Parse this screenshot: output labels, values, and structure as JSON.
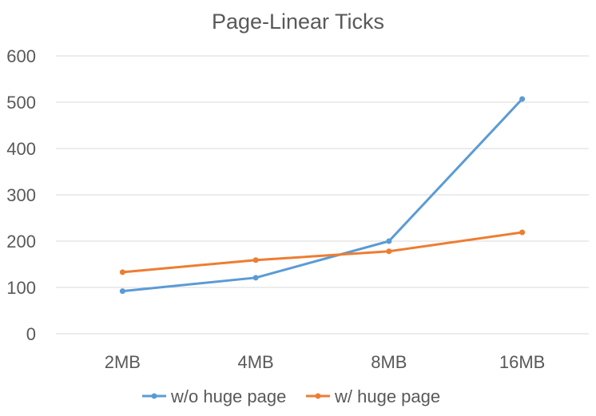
{
  "chart_data": {
    "type": "line",
    "title": "Page-Linear Ticks",
    "xlabel": "",
    "ylabel": "",
    "categories": [
      "2MB",
      "4MB",
      "8MB",
      "16MB"
    ],
    "ylim": [
      0,
      600
    ],
    "yticks": [
      0,
      100,
      200,
      300,
      400,
      500,
      600
    ],
    "grid": true,
    "legend_position": "bottom",
    "series": [
      {
        "name": "w/o huge page",
        "values": [
          92,
          121,
          200,
          507
        ],
        "color": "#5B9BD5"
      },
      {
        "name": "w/ huge page",
        "values": [
          133,
          159,
          178,
          219
        ],
        "color": "#ED7D31"
      }
    ]
  }
}
